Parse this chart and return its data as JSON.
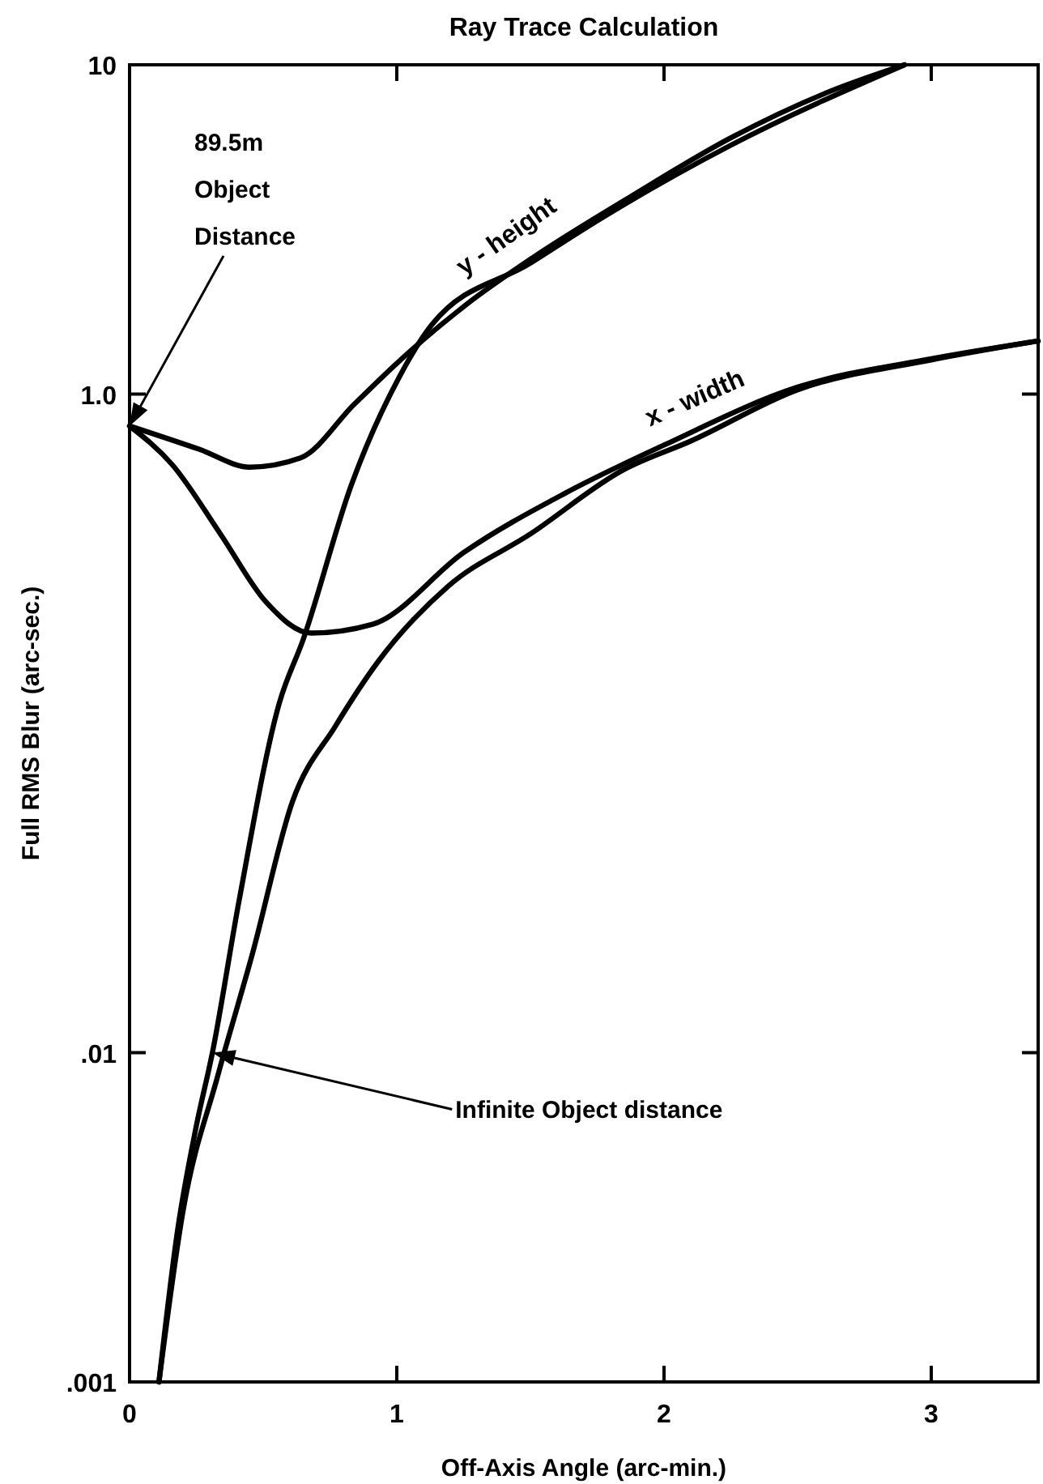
{
  "chart_data": {
    "type": "line",
    "title": "Ray Trace Calculation",
    "xlabel": "Off-Axis Angle  (arc-min.)",
    "ylabel": "Full RMS Blur (arc-sec.)",
    "log": "y",
    "xlim": [
      0,
      3.4
    ],
    "ylim": [
      0.001,
      10
    ],
    "xticks": [
      0,
      1,
      2,
      3
    ],
    "yticks": [
      {
        "value": 0.001,
        "label": ".001"
      },
      {
        "value": 0.01,
        "label": ".01"
      },
      {
        "value": 1,
        "label": "1.0"
      },
      10
    ],
    "series": [
      {
        "name": "y - height",
        "color": "#000000",
        "x": [
          0,
          0.26,
          0.45,
          0.64,
          0.84,
          1.0,
          1.26,
          1.51,
          1.88,
          2.25,
          2.62,
          2.9
        ],
        "values": [
          0.8,
          0.68,
          0.6,
          0.64,
          0.93,
          1.24,
          1.87,
          2.6,
          4.0,
          6.0,
          8.3,
          10
        ]
      },
      {
        "name": "x - width",
        "color": "#000000",
        "x": [
          0,
          0.16,
          0.34,
          0.51,
          0.68,
          0.91,
          1.25,
          1.63,
          2.0,
          2.5,
          3.0,
          3.4
        ],
        "values": [
          0.8,
          0.61,
          0.376,
          0.234,
          0.188,
          0.2,
          0.33,
          0.5,
          0.7,
          1.05,
          1.28,
          1.45
        ]
      },
      {
        "color": "#000000",
        "x": [
          0.11,
          0.18,
          0.25,
          0.31,
          0.41,
          0.56,
          0.65,
          0.83,
          1.01,
          1.13,
          1.5,
          1.76,
          2.25,
          2.9
        ],
        "values": [
          0.001,
          0.0029,
          0.006,
          0.01,
          0.029,
          0.115,
          0.18,
          0.53,
          1.13,
          1.62,
          2.5,
          3.4,
          5.7,
          10
        ]
      },
      {
        "color": "#000000",
        "x": [
          0.11,
          0.2,
          0.33,
          0.46,
          0.61,
          0.77,
          0.93,
          1.19,
          1.5,
          1.85,
          2.1,
          2.5,
          3.0,
          3.4
        ],
        "values": [
          0.001,
          0.0033,
          0.0085,
          0.02,
          0.058,
          0.098,
          0.154,
          0.26,
          0.376,
          0.59,
          0.72,
          1.03,
          1.27,
          1.45
        ]
      }
    ],
    "annotations": [
      "89.5m Object Distance",
      "Infinite Object distance"
    ]
  }
}
